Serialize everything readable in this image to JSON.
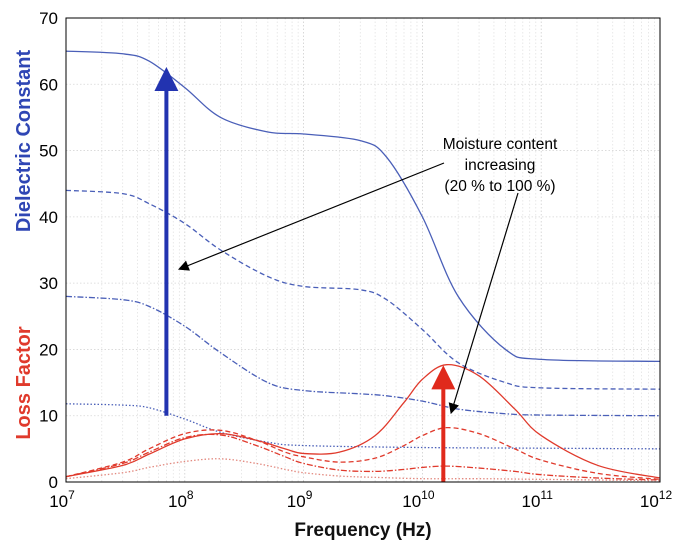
{
  "chart_data": {
    "type": "line",
    "xlabel": "Frequency (Hz)",
    "x_scale": "log",
    "xlim": [
      10000000.0,
      1000000000000.0
    ],
    "ylim": [
      0,
      70
    ],
    "y_ticks": [
      0,
      10,
      20,
      30,
      40,
      50,
      60,
      70
    ],
    "x_tick_labels": [
      {
        "base": "10",
        "exp": "7"
      },
      {
        "base": "10",
        "exp": "8"
      },
      {
        "base": "10",
        "exp": "9"
      },
      {
        "base": "10",
        "exp": "10"
      },
      {
        "base": "10",
        "exp": "11"
      },
      {
        "base": "10",
        "exp": "12"
      }
    ],
    "grid": true,
    "y_axis_labels": {
      "upper": {
        "text": "Dielectric Constant",
        "color": "#2f46b4"
      },
      "lower": {
        "text": "Loss Factor",
        "color": "#e03a2c"
      }
    },
    "annotation": {
      "lines": [
        "Moisture content",
        "increasing",
        "(20 % to 100 %)"
      ]
    },
    "series": [
      {
        "group": "dielectric constant",
        "style": "solid",
        "color": "#4a5fb8",
        "x": [
          10000000.0,
          30000000.0,
          50000000.0,
          100000000.0,
          200000000.0,
          500000000.0,
          1000000000.0,
          3000000000.0,
          5000000000.0,
          10000000000.0,
          20000000000.0,
          50000000000.0,
          100000000000.0,
          1000000000000.0
        ],
        "y": [
          65,
          64.6,
          63.5,
          59.5,
          55,
          52.8,
          52.5,
          51.5,
          49,
          40,
          28,
          20,
          18.5,
          18.2
        ]
      },
      {
        "group": "dielectric constant",
        "style": "dashed",
        "color": "#4a5fb8",
        "x": [
          10000000.0,
          30000000.0,
          50000000.0,
          100000000.0,
          200000000.0,
          500000000.0,
          1000000000.0,
          3000000000.0,
          5000000000.0,
          10000000000.0,
          20000000000.0,
          50000000000.0,
          100000000000.0,
          1000000000000.0
        ],
        "y": [
          44,
          43.5,
          42,
          39,
          35,
          31,
          29.5,
          29,
          27.5,
          23,
          18,
          15,
          14.2,
          14
        ]
      },
      {
        "group": "dielectric constant",
        "style": "dash-dot",
        "color": "#4a5fb8",
        "x": [
          10000000.0,
          30000000.0,
          50000000.0,
          100000000.0,
          200000000.0,
          500000000.0,
          1000000000.0,
          3000000000.0,
          5000000000.0,
          10000000000.0,
          20000000000.0,
          50000000000.0,
          100000000000.0,
          1000000000000.0
        ],
        "y": [
          28,
          27.5,
          26.5,
          23.5,
          19.5,
          15,
          13.8,
          13.3,
          13,
          12.2,
          11,
          10.3,
          10.1,
          10
        ]
      },
      {
        "group": "dielectric constant",
        "style": "dotted",
        "color": "#4a5fb8",
        "x": [
          10000000.0,
          30000000.0,
          50000000.0,
          100000000.0,
          200000000.0,
          500000000.0,
          1000000000.0,
          10000000000.0,
          100000000000.0,
          1000000000000.0
        ],
        "y": [
          11.8,
          11.6,
          11.2,
          9.5,
          7.5,
          6,
          5.5,
          5.2,
          5.1,
          5
        ]
      },
      {
        "group": "loss factor",
        "style": "solid",
        "color": "#e03a2c",
        "x": [
          10000000.0,
          30000000.0,
          50000000.0,
          100000000.0,
          200000000.0,
          400000000.0,
          700000000.0,
          1000000000.0,
          2000000000.0,
          4000000000.0,
          7000000000.0,
          10000000000.0,
          16000000000.0,
          30000000000.0,
          60000000000.0,
          100000000000.0,
          300000000000.0,
          1000000000000.0
        ],
        "y": [
          0.8,
          2.5,
          4.2,
          6.5,
          7.3,
          6.3,
          5,
          4.3,
          4.5,
          7,
          12,
          15.5,
          17.7,
          16,
          11,
          7,
          2.5,
          0.6
        ]
      },
      {
        "group": "loss factor",
        "style": "dashed",
        "color": "#e03a2c",
        "x": [
          10000000.0,
          30000000.0,
          50000000.0,
          100000000.0,
          200000000.0,
          400000000.0,
          700000000.0,
          1000000000.0,
          2000000000.0,
          4000000000.0,
          7000000000.0,
          10000000000.0,
          16000000000.0,
          30000000000.0,
          60000000000.0,
          100000000000.0,
          300000000000.0,
          1000000000000.0
        ],
        "y": [
          0.8,
          3,
          5,
          7.3,
          7.8,
          6.3,
          4.5,
          3.8,
          3,
          3.6,
          5.5,
          7,
          8.2,
          7.3,
          5,
          3.3,
          1.3,
          0.4
        ]
      },
      {
        "group": "loss factor",
        "style": "dash-dot",
        "color": "#e03a2c",
        "x": [
          10000000.0,
          30000000.0,
          50000000.0,
          100000000.0,
          200000000.0,
          400000000.0,
          700000000.0,
          1000000000.0,
          2000000000.0,
          4000000000.0,
          7000000000.0,
          10000000000.0,
          16000000000.0,
          30000000000.0,
          60000000000.0,
          100000000000.0,
          300000000000.0,
          1000000000000.0
        ],
        "y": [
          0.8,
          2.8,
          4.5,
          6.7,
          7.1,
          5.5,
          3.8,
          2.8,
          1.8,
          1.6,
          1.9,
          2.2,
          2.4,
          2.1,
          1.6,
          1.1,
          0.6,
          0.3
        ]
      },
      {
        "group": "loss factor",
        "style": "dotted",
        "color": "#e38a80",
        "x": [
          10000000.0,
          30000000.0,
          50000000.0,
          100000000.0,
          200000000.0,
          400000000.0,
          700000000.0,
          1000000000.0,
          2000000000.0,
          4000000000.0,
          10000000000.0,
          30000000000.0,
          100000000000.0,
          1000000000000.0
        ],
        "y": [
          0.5,
          1.4,
          2.2,
          3.1,
          3.5,
          2.8,
          1.9,
          1.4,
          0.9,
          0.7,
          0.5,
          0.5,
          0.4,
          0.2
        ]
      }
    ],
    "arrows": [
      {
        "color": "#2233b0",
        "x": 70000000.0,
        "y_from": 10,
        "y_to": 62
      },
      {
        "color": "#e02a1c",
        "x": 15000000000.0,
        "y_from": 0,
        "y_to": 17
      }
    ]
  }
}
